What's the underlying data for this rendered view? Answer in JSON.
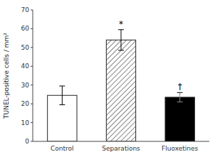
{
  "chart_data": {
    "type": "bar",
    "categories": [
      "Control",
      "Separations",
      "Fluoxetines"
    ],
    "values": [
      24.5,
      54.0,
      23.5
    ],
    "errors": [
      5.0,
      5.5,
      2.5
    ],
    "colors": [
      "white",
      "white",
      "black"
    ],
    "annotations": [
      null,
      "*",
      "†"
    ],
    "ylabel": "TUNEL-positive cells / mm²",
    "ylim": [
      0,
      70
    ],
    "yticks": [
      0,
      10,
      20,
      30,
      40,
      50,
      60,
      70
    ],
    "grid": false
  }
}
